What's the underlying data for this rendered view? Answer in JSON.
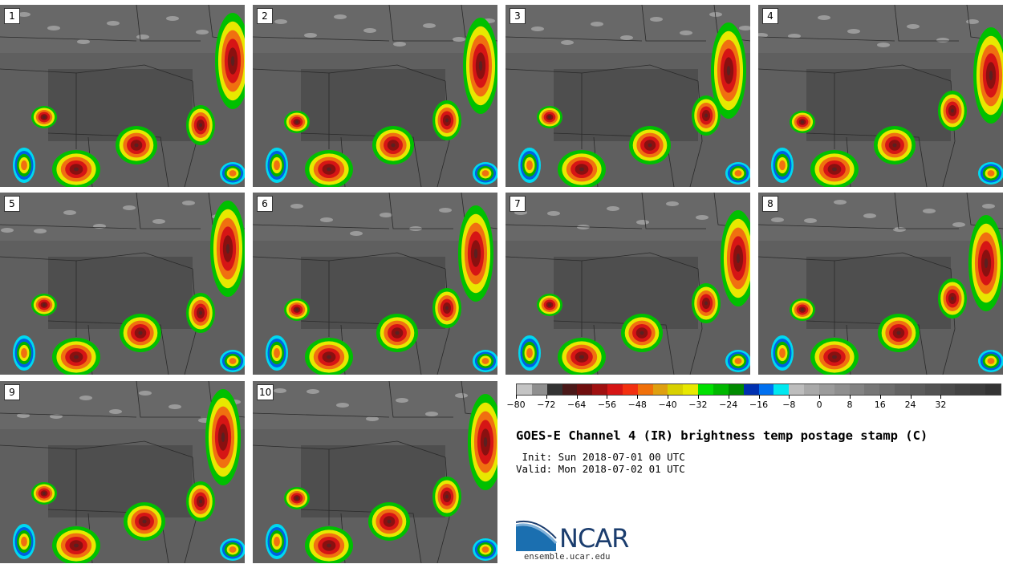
{
  "panels": [
    {
      "label": "1"
    },
    {
      "label": "2"
    },
    {
      "label": "3"
    },
    {
      "label": "4"
    },
    {
      "label": "5"
    },
    {
      "label": "6"
    },
    {
      "label": "7"
    },
    {
      "label": "8"
    },
    {
      "label": "9"
    },
    {
      "label": "10"
    }
  ],
  "colorbar": {
    "colors": [
      "#c4c4c4",
      "#8f8f8f",
      "#333333",
      "#4a1818",
      "#6f0e0e",
      "#a01010",
      "#d61515",
      "#f33010",
      "#f0700a",
      "#dfa010",
      "#d8d000",
      "#e8e800",
      "#00e000",
      "#00b800",
      "#008a00",
      "#0030b0",
      "#0070f0",
      "#00e8f0",
      "#bdbdbd",
      "#a9a9a9",
      "#9b9b9b",
      "#8f8f8f",
      "#838383",
      "#777777",
      "#6d6d6d",
      "#636363",
      "#5b5b5b",
      "#535353",
      "#4b4b4b",
      "#434343",
      "#3b3b3b",
      "#333333"
    ],
    "tick_labels": [
      "−80",
      "−72",
      "−64",
      "−56",
      "−48",
      "−40",
      "−32",
      "−24",
      "−16",
      "−8",
      "0",
      "8",
      "16",
      "24",
      "32"
    ]
  },
  "title": "GOES-E Channel 4 (IR) brightness temp postage stamp (C)",
  "init": " Init: Sun 2018-07-01 00 UTC",
  "valid": "Valid: Mon 2018-07-02 01 UTC",
  "logo_text": "NCAR",
  "url": "ensemble.ucar.edu",
  "logo_colors": {
    "blue": "#1b6fb0",
    "dark": "#1b3d6e"
  }
}
